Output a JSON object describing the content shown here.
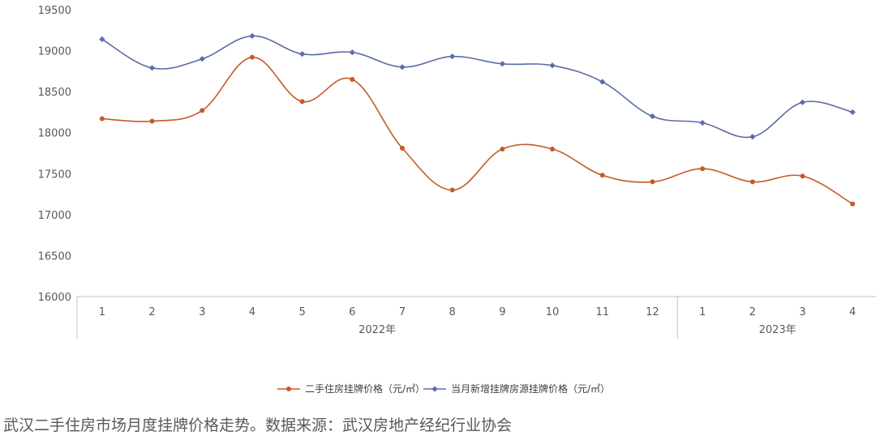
{
  "chart_data": {
    "type": "line",
    "title": "",
    "xlabel": "",
    "ylabel": "",
    "ylim": [
      16000,
      19500
    ],
    "yticks": [
      16000,
      16500,
      17000,
      17500,
      18000,
      18500,
      19000,
      19500
    ],
    "categories": [
      "1",
      "2",
      "3",
      "4",
      "5",
      "6",
      "7",
      "8",
      "9",
      "10",
      "11",
      "12",
      "1",
      "2",
      "3",
      "4"
    ],
    "groups": [
      {
        "label": "2022年",
        "start": 0,
        "end": 11
      },
      {
        "label": "2023年",
        "start": 12,
        "end": 15
      }
    ],
    "series": [
      {
        "name": "二手住房挂牌价格（元/㎡）",
        "color": "#C55A28",
        "marker": "circle",
        "values": [
          18170,
          18140,
          18270,
          18920,
          18380,
          18650,
          17810,
          17300,
          17800,
          17800,
          17480,
          17400,
          17560,
          17400,
          17470,
          17130
        ]
      },
      {
        "name": "当月新增挂牌房源挂牌价格（元/㎡）",
        "color": "#5B6BA8",
        "marker": "diamond",
        "values": [
          19140,
          18790,
          18900,
          19180,
          18960,
          18980,
          18800,
          18930,
          18840,
          18820,
          18620,
          18200,
          18120,
          17950,
          18370,
          18250
        ]
      }
    ],
    "grid": false,
    "legend": "bottom"
  },
  "caption": "武汉二手住房市场月度挂牌价格走势。数据来源：武汉房地产经纪行业协会"
}
